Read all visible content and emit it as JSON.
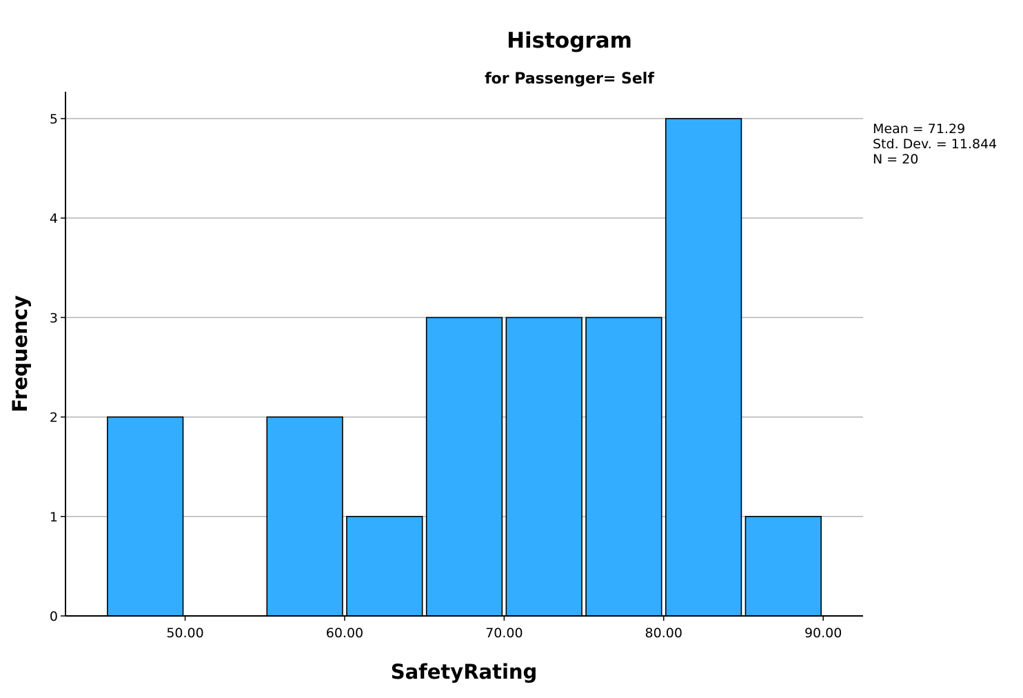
{
  "chart_data": {
    "type": "bar",
    "title": "Histogram",
    "subtitle": "for Passenger= Self",
    "xlabel": "SafetyRating",
    "ylabel": "Frequency",
    "bin_width": 5,
    "bins": [
      {
        "start": 45,
        "end": 50,
        "count": 2
      },
      {
        "start": 50,
        "end": 55,
        "count": 0
      },
      {
        "start": 55,
        "end": 60,
        "count": 2
      },
      {
        "start": 60,
        "end": 65,
        "count": 1
      },
      {
        "start": 65,
        "end": 70,
        "count": 3
      },
      {
        "start": 70,
        "end": 75,
        "count": 3
      },
      {
        "start": 75,
        "end": 80,
        "count": 3
      },
      {
        "start": 80,
        "end": 85,
        "count": 5
      },
      {
        "start": 85,
        "end": 90,
        "count": 1
      }
    ],
    "xlim": [
      42.5,
      92.5
    ],
    "ylim": [
      0,
      5.27
    ],
    "x_ticks": [
      "50.00",
      "60.00",
      "70.00",
      "80.00",
      "90.00"
    ],
    "y_ticks": [
      "0",
      "1",
      "2",
      "3",
      "4",
      "5"
    ],
    "grid": true,
    "stats": {
      "mean": "Mean = 71.29",
      "std_dev": "Std. Dev. = 11.844",
      "n": "N = 20"
    },
    "colors": {
      "bar": "#33adff",
      "gridline": "#b4b4b4"
    }
  }
}
